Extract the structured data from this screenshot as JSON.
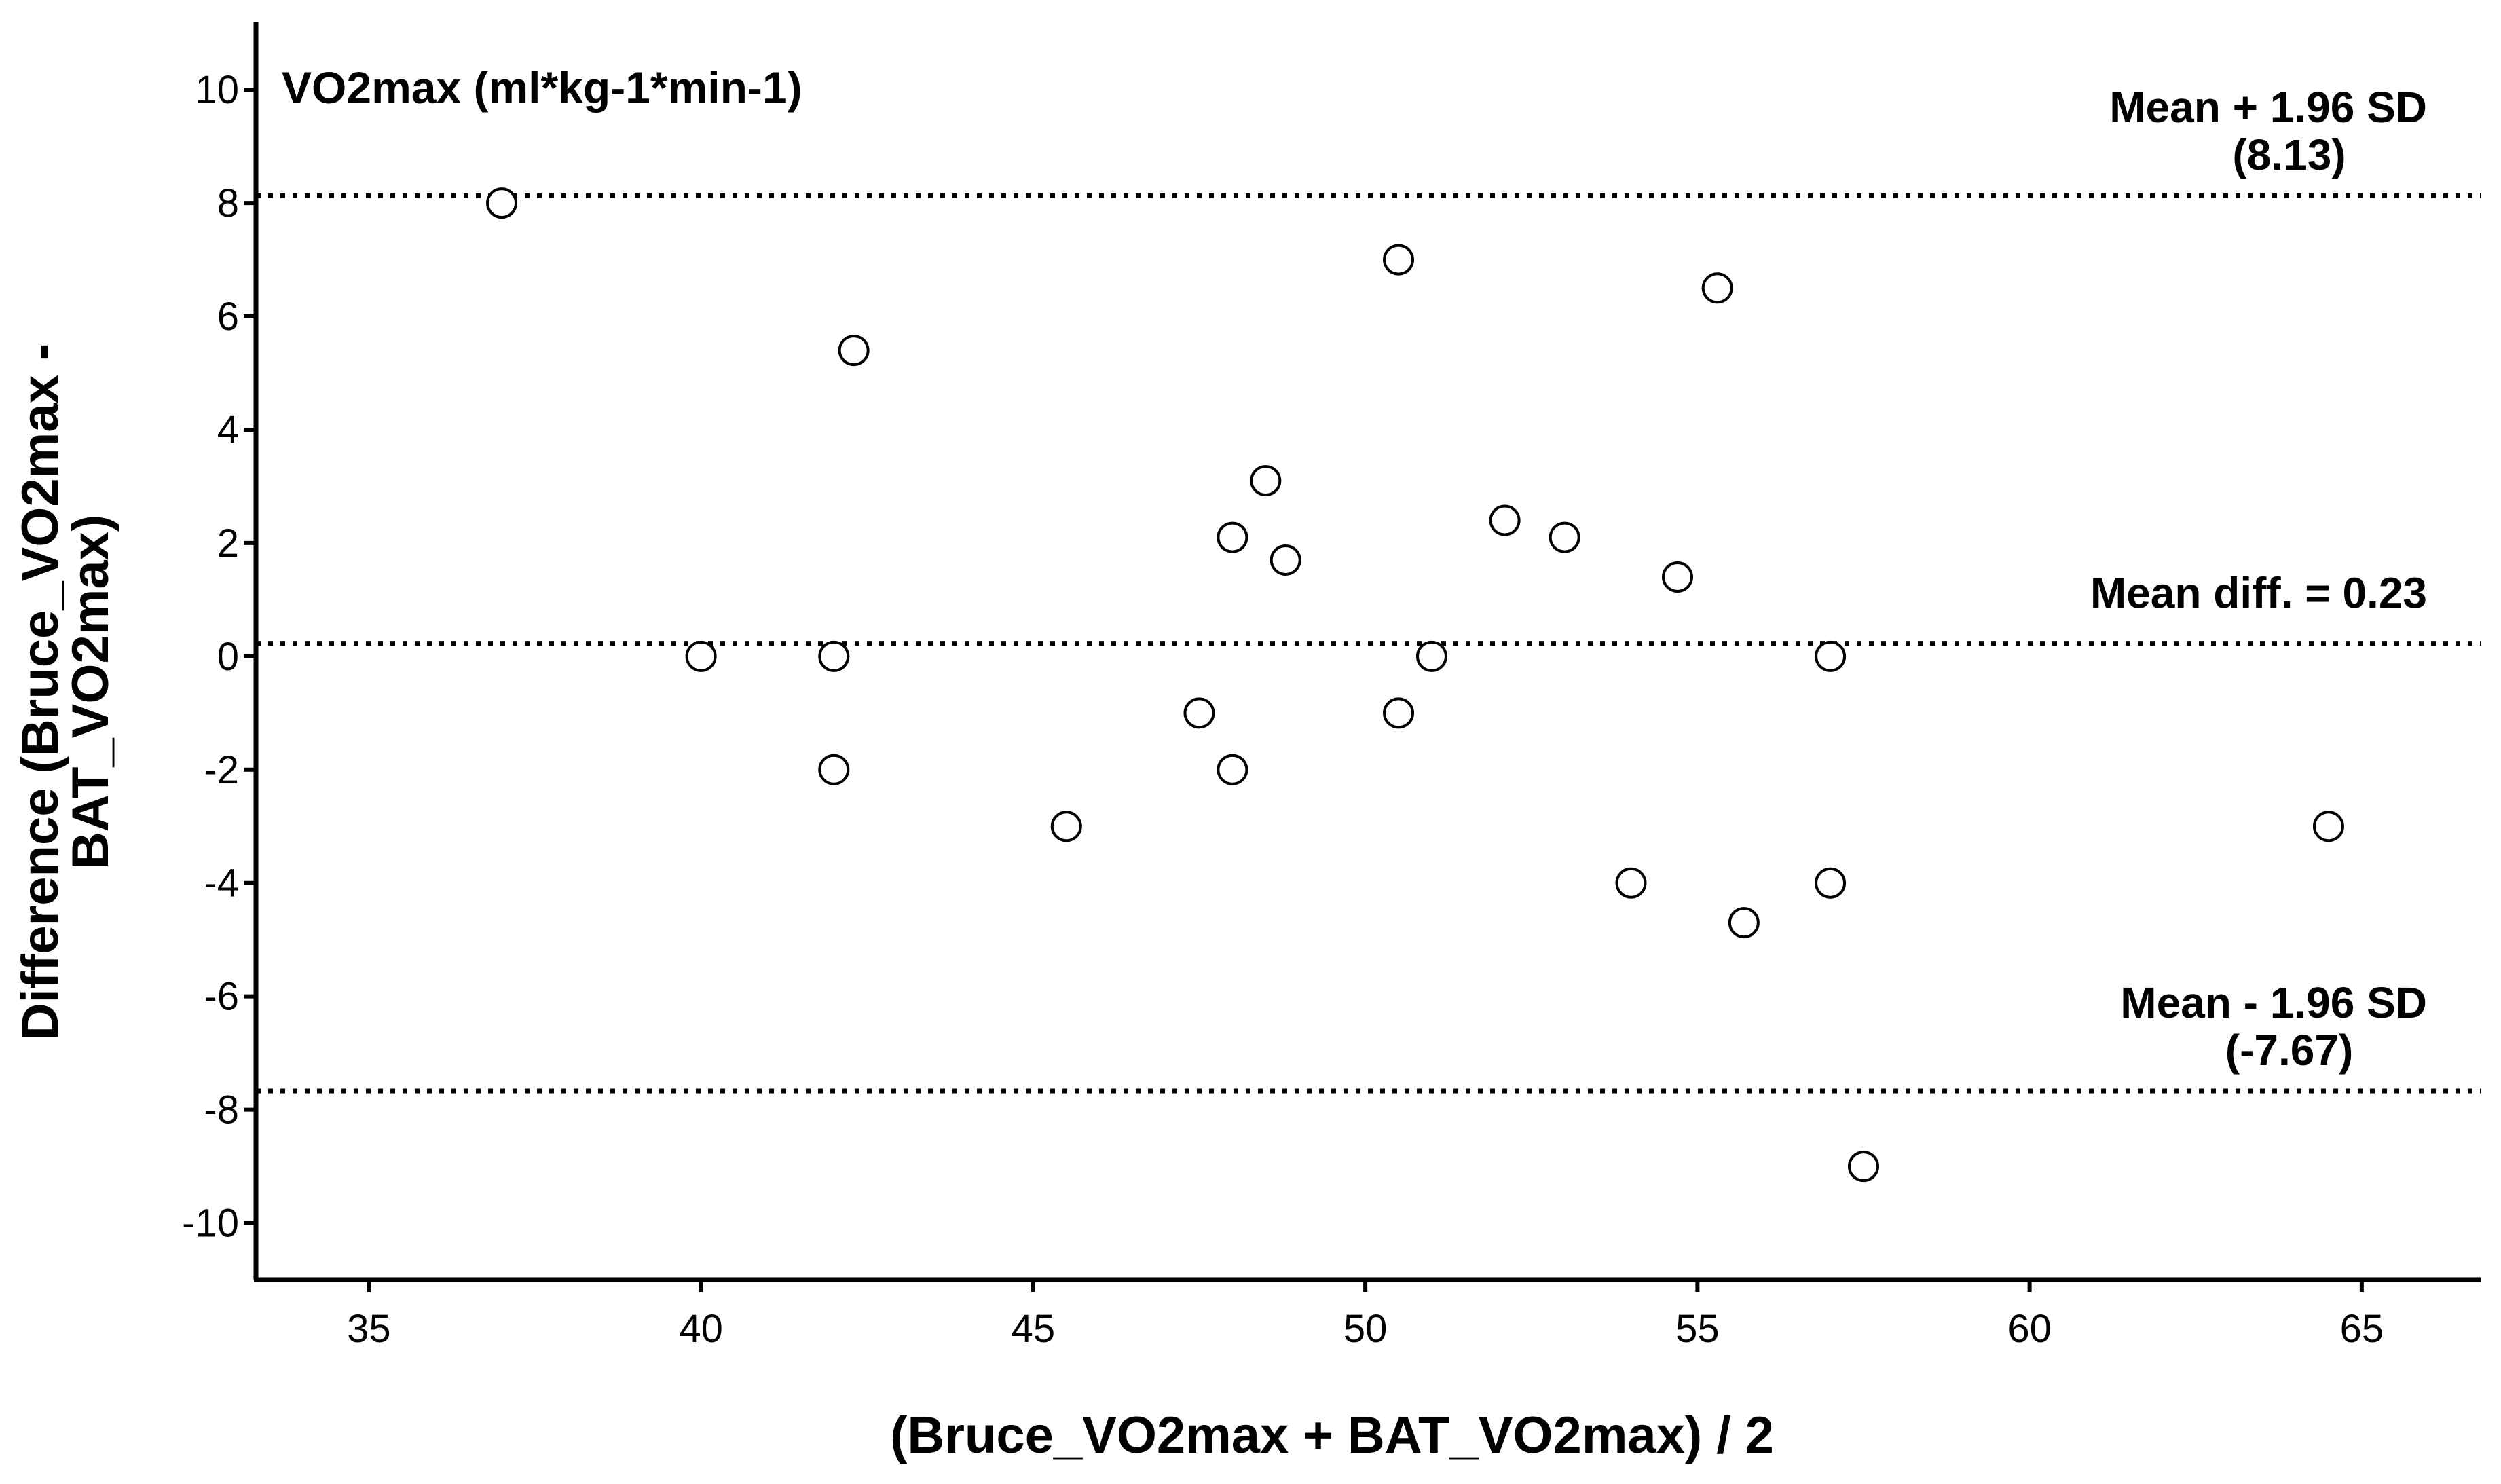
{
  "chart_data": {
    "type": "scatter",
    "title": "VO2max (ml*kg-1*min-1)",
    "xlabel": "(Bruce_VO2max + BAT_VO2max) / 2",
    "ylabel_line1": "Difference (Bruce_VO2max -",
    "ylabel_line2": "BAT_VO2max)",
    "xlim": [
      33.3,
      66.8
    ],
    "ylim": [
      -11.0,
      11.2
    ],
    "x_ticks": [
      35,
      40,
      45,
      50,
      55,
      60,
      65
    ],
    "y_ticks": [
      10,
      8,
      6,
      4,
      2,
      0,
      -2,
      -4,
      -6,
      -8,
      -10
    ],
    "grid": false,
    "marker": "open-circle",
    "points": [
      {
        "x": 37.0,
        "y": 8.0
      },
      {
        "x": 42.3,
        "y": 5.4
      },
      {
        "x": 50.5,
        "y": 7.0
      },
      {
        "x": 55.3,
        "y": 6.5
      },
      {
        "x": 48.5,
        "y": 3.1
      },
      {
        "x": 48.0,
        "y": 2.1
      },
      {
        "x": 48.8,
        "y": 1.7
      },
      {
        "x": 52.1,
        "y": 2.4
      },
      {
        "x": 53.0,
        "y": 2.1
      },
      {
        "x": 54.7,
        "y": 1.4
      },
      {
        "x": 40.0,
        "y": 0.0
      },
      {
        "x": 42.0,
        "y": 0.0
      },
      {
        "x": 51.0,
        "y": 0.0
      },
      {
        "x": 57.0,
        "y": 0.0
      },
      {
        "x": 47.5,
        "y": -1.0
      },
      {
        "x": 50.5,
        "y": -1.0
      },
      {
        "x": 42.0,
        "y": -2.0
      },
      {
        "x": 48.0,
        "y": -2.0
      },
      {
        "x": 45.5,
        "y": -3.0
      },
      {
        "x": 64.5,
        "y": -3.0
      },
      {
        "x": 54.0,
        "y": -4.0
      },
      {
        "x": 57.0,
        "y": -4.0
      },
      {
        "x": 55.7,
        "y": -4.7
      },
      {
        "x": 57.5,
        "y": -9.0
      }
    ],
    "reference_lines": [
      {
        "y": 8.13,
        "label_line1": "Mean + 1.96 SD",
        "label_line2": "(8.13)"
      },
      {
        "y": 0.23,
        "label_line1": "Mean diff. = 0.23",
        "label_line2": ""
      },
      {
        "y": -7.67,
        "label_line1": "Mean - 1.96 SD",
        "label_line2": "(-7.67)"
      }
    ]
  }
}
